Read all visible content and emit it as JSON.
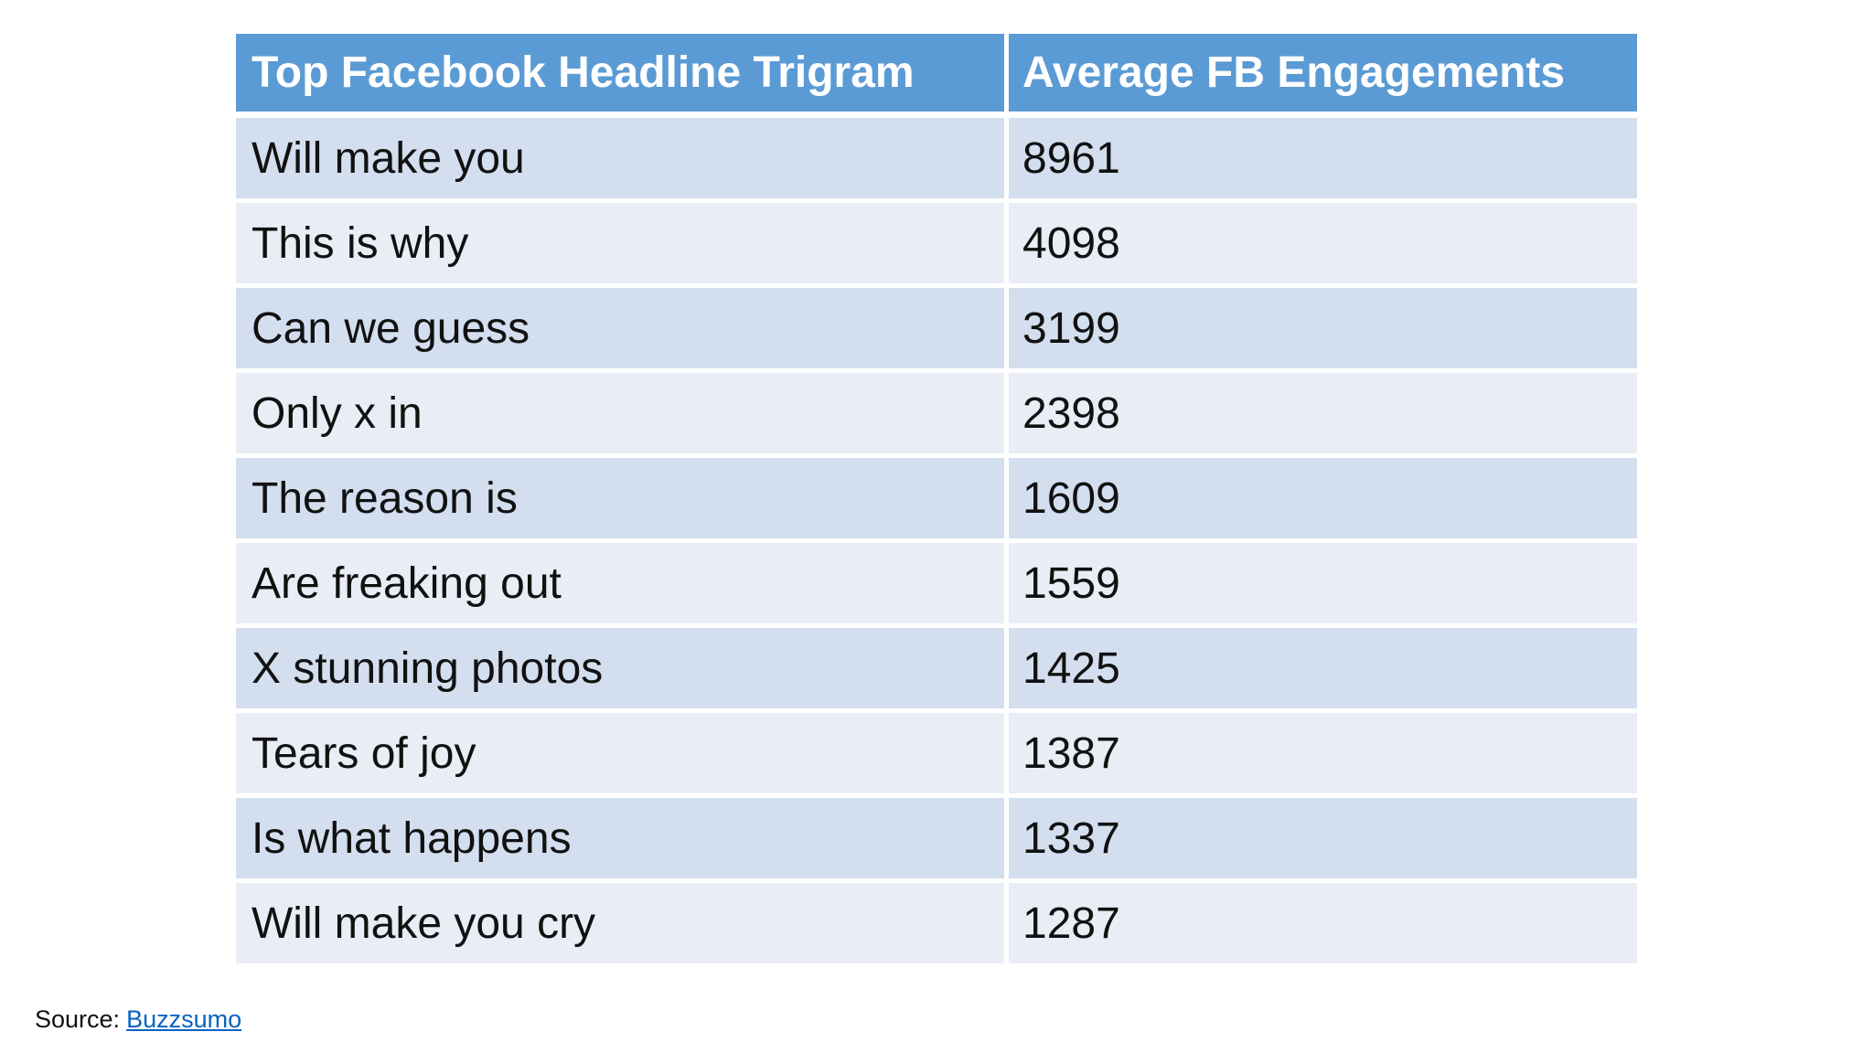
{
  "page": {
    "background": "#ffffff"
  },
  "table": {
    "columns": [
      {
        "label": "Top Facebook Headline Trigram"
      },
      {
        "label": "Average FB Engagements"
      }
    ],
    "rows": [
      {
        "trigram": "Will make you",
        "engagements": "8961"
      },
      {
        "trigram": "This is why",
        "engagements": "4098"
      },
      {
        "trigram": "Can we guess",
        "engagements": "3199"
      },
      {
        "trigram": "Only x in",
        "engagements": "2398"
      },
      {
        "trigram": "The reason is",
        "engagements": "1609"
      },
      {
        "trigram": "Are freaking out",
        "engagements": "1559"
      },
      {
        "trigram": "X stunning photos",
        "engagements": "1425"
      },
      {
        "trigram": "Tears of joy",
        "engagements": "1387"
      },
      {
        "trigram": "Is what happens",
        "engagements": "1337"
      },
      {
        "trigram": "Will make you cry",
        "engagements": "1287"
      }
    ]
  },
  "source": {
    "label": "Source:",
    "link_text": "Buzzsumo"
  },
  "colors": {
    "header_bg": "#5B9BD5",
    "header_text": "#FFFFFF",
    "band_dark": "#D3DEEF",
    "band_light": "#E9EDF5",
    "body_text": "#111111",
    "link": "#0563C1"
  },
  "chart_data": {
    "type": "table",
    "title": "",
    "columns": [
      "Top Facebook Headline Trigram",
      "Average FB Engagements"
    ],
    "rows": [
      [
        "Will make you",
        8961
      ],
      [
        "This is why",
        4098
      ],
      [
        "Can we guess",
        3199
      ],
      [
        "Only x in",
        2398
      ],
      [
        "The reason is",
        1609
      ],
      [
        "Are freaking out",
        1559
      ],
      [
        "X stunning photos",
        1425
      ],
      [
        "Tears of joy",
        1387
      ],
      [
        "Is what happens",
        1337
      ],
      [
        "Will make you cry",
        1287
      ]
    ],
    "source": "Buzzsumo"
  }
}
